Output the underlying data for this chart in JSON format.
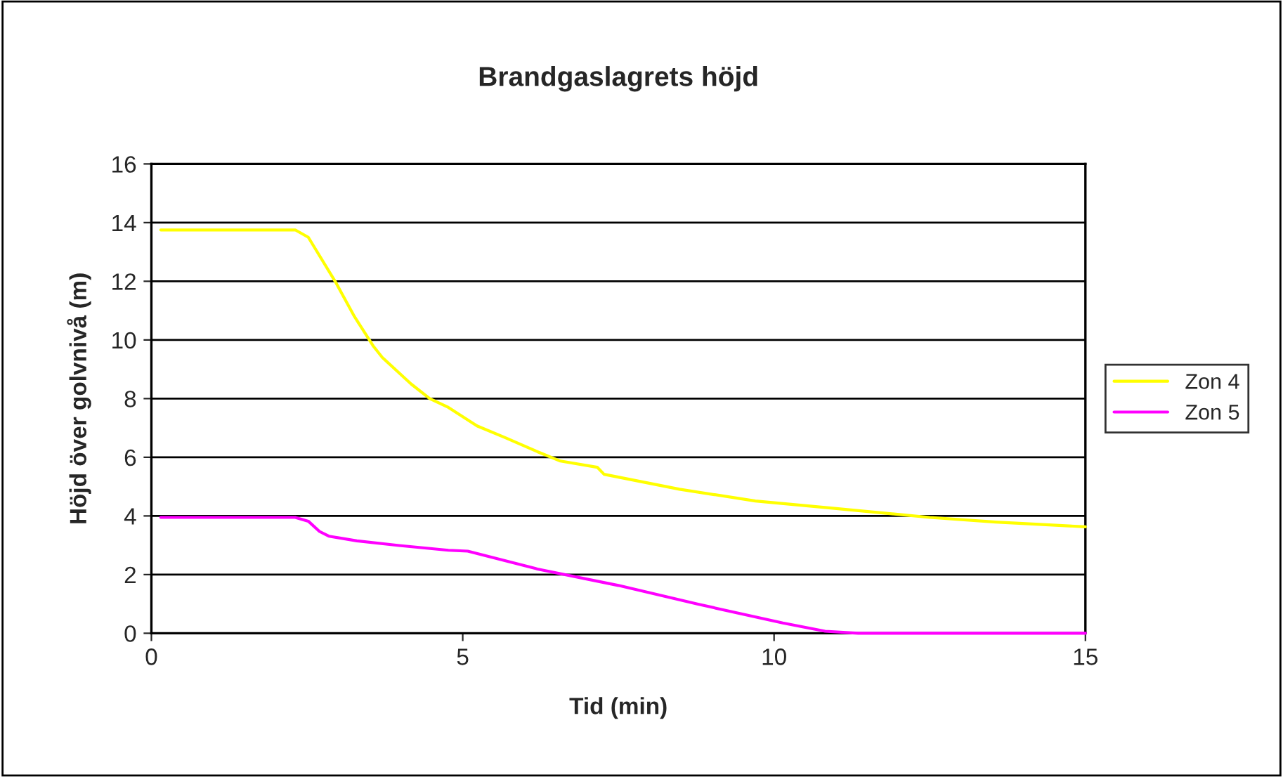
{
  "chart_data": {
    "type": "line",
    "title": "Brandgaslagrets höjd",
    "xlabel": "Tid (min)",
    "ylabel": "Höjd över golvnivå (m)",
    "xlim": [
      0,
      15
    ],
    "xticks": [
      0,
      5,
      10,
      15
    ],
    "ylim": [
      0,
      16
    ],
    "yticks": [
      0,
      2,
      4,
      6,
      8,
      10,
      12,
      14,
      16
    ],
    "grid": "y",
    "legend": "right",
    "marker": "none",
    "line_style": "solid",
    "series": [
      {
        "name": "Zon 4",
        "color": "#ffff00",
        "x": [
          0.15,
          2.31,
          2.52,
          2.95,
          3.26,
          3.56,
          3.71,
          4.17,
          4.47,
          4.77,
          5.23,
          5.68,
          6.2,
          6.57,
          7.16,
          7.27,
          8.48,
          9.7,
          10.91,
          12.5,
          13.56,
          15
        ],
        "values": [
          13.75,
          13.75,
          13.5,
          12.0,
          10.8,
          9.8,
          9.4,
          8.5,
          8.0,
          7.7,
          7.07,
          6.67,
          6.19,
          5.87,
          5.66,
          5.42,
          4.91,
          4.51,
          4.27,
          3.95,
          3.79,
          3.63
        ]
      },
      {
        "name": "Zon 5",
        "color": "#ff00ff",
        "x": [
          0.15,
          2.31,
          2.52,
          2.7,
          2.85,
          3.3,
          3.98,
          4.77,
          5.08,
          6.2,
          7.5,
          8.78,
          10.14,
          10.82,
          11.35,
          15
        ],
        "values": [
          3.95,
          3.95,
          3.82,
          3.47,
          3.31,
          3.15,
          2.99,
          2.83,
          2.8,
          2.19,
          1.63,
          0.99,
          0.35,
          0.07,
          0,
          0
        ]
      }
    ]
  }
}
